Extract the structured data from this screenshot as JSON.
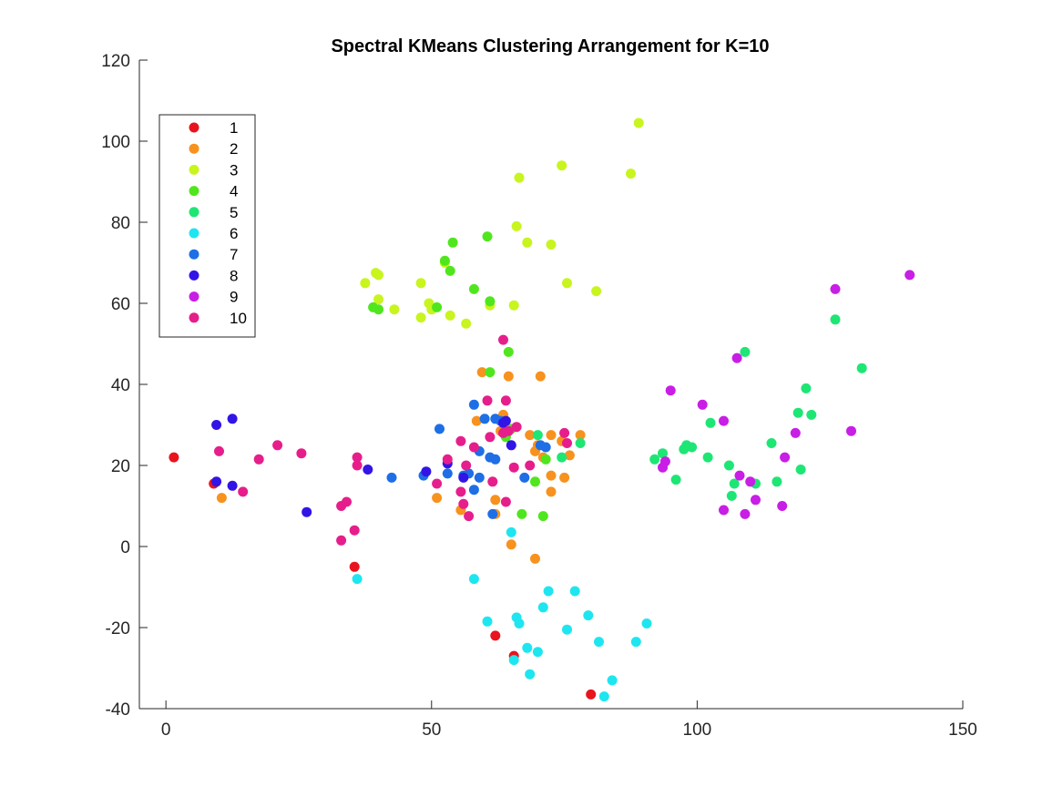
{
  "chart_data": {
    "type": "scatter",
    "title": "Spectral KMeans Clustering Arrangement for K=10",
    "xlabel": "",
    "ylabel": "",
    "xlim": [
      -5,
      150
    ],
    "ylim": [
      -40,
      120
    ],
    "x_ticks": [
      0,
      50,
      100,
      150
    ],
    "y_ticks": [
      -40,
      -20,
      0,
      20,
      40,
      60,
      80,
      100,
      120
    ],
    "grid": false,
    "legend_position": "top-left",
    "series": [
      {
        "name": "1",
        "color": "#e8141e",
        "points": [
          [
            1.5,
            22
          ],
          [
            9,
            15.5
          ],
          [
            35.5,
            -5
          ],
          [
            62,
            -22
          ],
          [
            65.5,
            -27
          ],
          [
            80,
            -36.5
          ]
        ]
      },
      {
        "name": "2",
        "color": "#f7921e",
        "points": [
          [
            10.5,
            12
          ],
          [
            51,
            12
          ],
          [
            55.5,
            9
          ],
          [
            58.5,
            31
          ],
          [
            59.5,
            43
          ],
          [
            62,
            11.5
          ],
          [
            62,
            8
          ],
          [
            63,
            28.5
          ],
          [
            63.5,
            32.5
          ],
          [
            64.5,
            42
          ],
          [
            65,
            0.5
          ],
          [
            68.5,
            27.5
          ],
          [
            69.5,
            -3
          ],
          [
            69.5,
            23.5
          ],
          [
            70,
            25
          ],
          [
            70.5,
            42
          ],
          [
            71,
            22
          ],
          [
            72.5,
            27.5
          ],
          [
            72.5,
            13.5
          ],
          [
            72.5,
            17.5
          ],
          [
            74.5,
            26
          ],
          [
            75,
            17
          ],
          [
            76,
            22.5
          ],
          [
            78,
            27.5
          ]
        ]
      },
      {
        "name": "3",
        "color": "#c8f51e",
        "points": [
          [
            37.5,
            65
          ],
          [
            39.5,
            67.5
          ],
          [
            40,
            61
          ],
          [
            40,
            67
          ],
          [
            43,
            58.5
          ],
          [
            48,
            56.5
          ],
          [
            48,
            65
          ],
          [
            49.5,
            60
          ],
          [
            50,
            58.5
          ],
          [
            52.5,
            70
          ],
          [
            53.5,
            57
          ],
          [
            56.5,
            55
          ],
          [
            61,
            59.5
          ],
          [
            65.5,
            59.5
          ],
          [
            66,
            79
          ],
          [
            66.5,
            91
          ],
          [
            68,
            75
          ],
          [
            72.5,
            74.5
          ],
          [
            74.5,
            94
          ],
          [
            75.5,
            65
          ],
          [
            81,
            63
          ],
          [
            87.5,
            92
          ],
          [
            89,
            104.5
          ]
        ]
      },
      {
        "name": "4",
        "color": "#50e61e",
        "points": [
          [
            39,
            59
          ],
          [
            40,
            58.5
          ],
          [
            51,
            59
          ],
          [
            52.5,
            70.5
          ],
          [
            53.5,
            68
          ],
          [
            54,
            75
          ],
          [
            58,
            63.5
          ],
          [
            60.5,
            76.5
          ],
          [
            61,
            43
          ],
          [
            61,
            60.5
          ],
          [
            64.5,
            48
          ],
          [
            64,
            27
          ],
          [
            65,
            29
          ],
          [
            67,
            8
          ],
          [
            69.5,
            16
          ],
          [
            71,
            7.5
          ],
          [
            71.5,
            21.5
          ]
        ]
      },
      {
        "name": "5",
        "color": "#1ee675",
        "points": [
          [
            70,
            27.5
          ],
          [
            74.5,
            22
          ],
          [
            78,
            25.5
          ],
          [
            92,
            21.5
          ],
          [
            93.5,
            23
          ],
          [
            96,
            16.5
          ],
          [
            97.5,
            24
          ],
          [
            98,
            25
          ],
          [
            99,
            24.5
          ],
          [
            102,
            22
          ],
          [
            102.5,
            30.5
          ],
          [
            106,
            20
          ],
          [
            106.5,
            12.5
          ],
          [
            107,
            15.5
          ],
          [
            109,
            48
          ],
          [
            111,
            15.5
          ],
          [
            114,
            25.5
          ],
          [
            115,
            16
          ],
          [
            119,
            33
          ],
          [
            119.5,
            19
          ],
          [
            120.5,
            39
          ],
          [
            121.5,
            32.5
          ],
          [
            126,
            56
          ],
          [
            131,
            44
          ]
        ]
      },
      {
        "name": "6",
        "color": "#1ee6f0",
        "points": [
          [
            36,
            -8
          ],
          [
            58,
            -8
          ],
          [
            60.5,
            -18.5
          ],
          [
            65,
            3.5
          ],
          [
            65.5,
            -28
          ],
          [
            66,
            -17.5
          ],
          [
            66.5,
            -19
          ],
          [
            68,
            -25
          ],
          [
            68.5,
            -31.5
          ],
          [
            70,
            -26
          ],
          [
            71,
            -15
          ],
          [
            72,
            -11
          ],
          [
            75.5,
            -20.5
          ],
          [
            77,
            -11
          ],
          [
            79.5,
            -17
          ],
          [
            81.5,
            -23.5
          ],
          [
            82.5,
            -37
          ],
          [
            84,
            -33
          ],
          [
            88.5,
            -23.5
          ],
          [
            90.5,
            -19
          ]
        ]
      },
      {
        "name": "7",
        "color": "#1e6ee6",
        "points": [
          [
            42.5,
            17
          ],
          [
            48.5,
            17.5
          ],
          [
            51.5,
            29
          ],
          [
            53,
            18
          ],
          [
            56,
            17.5
          ],
          [
            57,
            18
          ],
          [
            58,
            14
          ],
          [
            58,
            35
          ],
          [
            59,
            17
          ],
          [
            59,
            23.5
          ],
          [
            60,
            31.5
          ],
          [
            61,
            22
          ],
          [
            61.5,
            8
          ],
          [
            62,
            31.5
          ],
          [
            62,
            21.5
          ],
          [
            63,
            31
          ],
          [
            67.5,
            17
          ],
          [
            70.5,
            25
          ],
          [
            71.5,
            24.5
          ]
        ]
      },
      {
        "name": "8",
        "color": "#3214e6",
        "points": [
          [
            9.5,
            30
          ],
          [
            9.5,
            16
          ],
          [
            12.5,
            31.5
          ],
          [
            12.5,
            15
          ],
          [
            26.5,
            8.5
          ],
          [
            38,
            19
          ],
          [
            49,
            18.5
          ],
          [
            53,
            20.5
          ],
          [
            56,
            17
          ],
          [
            63.5,
            30.5
          ],
          [
            64,
            31
          ],
          [
            65,
            25
          ]
        ]
      },
      {
        "name": "9",
        "color": "#c81ee6",
        "points": [
          [
            93.5,
            19.5
          ],
          [
            94,
            21
          ],
          [
            95,
            38.5
          ],
          [
            101,
            35
          ],
          [
            105,
            9
          ],
          [
            105,
            31
          ],
          [
            107.5,
            46.5
          ],
          [
            108,
            17.5
          ],
          [
            109,
            8
          ],
          [
            110,
            16
          ],
          [
            111,
            11.5
          ],
          [
            116,
            10
          ],
          [
            116.5,
            22
          ],
          [
            118.5,
            28
          ],
          [
            126,
            63.5
          ],
          [
            129,
            28.5
          ],
          [
            140,
            67
          ]
        ]
      },
      {
        "name": "10",
        "color": "#e61e8c",
        "points": [
          [
            10,
            23.5
          ],
          [
            14.5,
            13.5
          ],
          [
            17.5,
            21.5
          ],
          [
            21,
            25
          ],
          [
            25.5,
            23
          ],
          [
            33,
            10
          ],
          [
            33,
            1.5
          ],
          [
            34,
            11
          ],
          [
            35.5,
            4
          ],
          [
            36,
            20
          ],
          [
            36,
            22
          ],
          [
            51,
            15.5
          ],
          [
            53,
            21.5
          ],
          [
            55.5,
            26
          ],
          [
            55.5,
            13.5
          ],
          [
            56,
            10.5
          ],
          [
            56.5,
            20
          ],
          [
            57,
            7.5
          ],
          [
            58,
            24.5
          ],
          [
            60.5,
            36
          ],
          [
            61,
            27
          ],
          [
            61.5,
            16
          ],
          [
            63.5,
            51
          ],
          [
            63.5,
            28
          ],
          [
            64,
            11
          ],
          [
            64,
            36
          ],
          [
            64.5,
            28.5
          ],
          [
            65.5,
            19.5
          ],
          [
            66,
            29.5
          ],
          [
            68.5,
            20
          ],
          [
            75,
            28
          ],
          [
            75.5,
            25.5
          ]
        ]
      }
    ]
  }
}
